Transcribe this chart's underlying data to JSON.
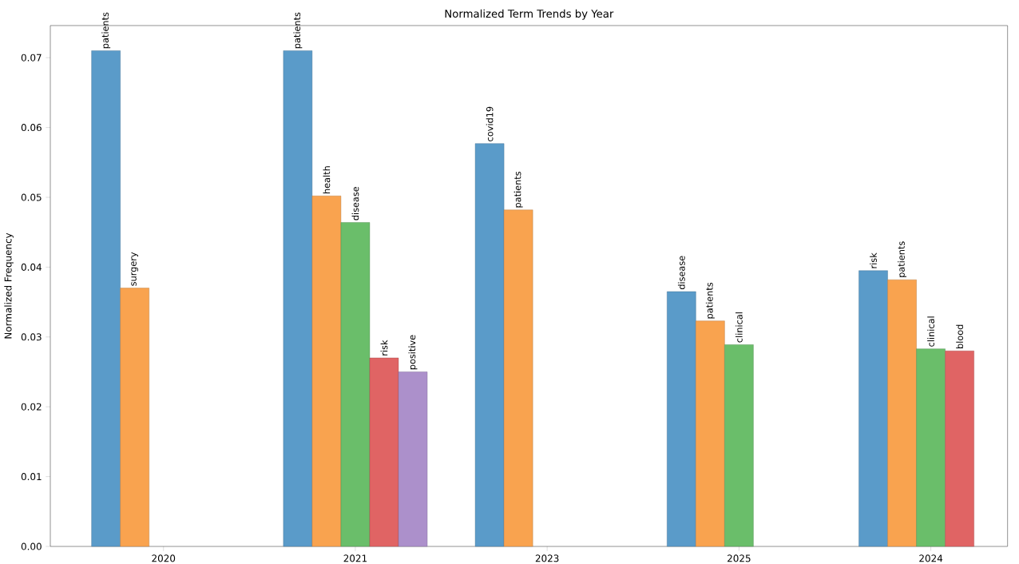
{
  "chart_data": {
    "type": "bar",
    "title": "Normalized Term Trends by Year",
    "ylabel": "Normalized Frequency",
    "categories": [
      "2020",
      "2021",
      "2023",
      "2025",
      "2024"
    ],
    "series": [
      {
        "color": "#5a9bc9",
        "values": [
          0.071,
          0.071,
          0.0577,
          0.0365,
          0.0395
        ],
        "value_labels": [
          "patients",
          "patients",
          "covid19",
          "disease",
          "risk"
        ]
      },
      {
        "color": "#f9a34f",
        "values": [
          0.037,
          0.0502,
          0.0482,
          0.0323,
          0.0382
        ],
        "value_labels": [
          "surgery",
          "health",
          "patients",
          "patients",
          "patients"
        ]
      },
      {
        "color": "#6abe6a",
        "values": [
          null,
          0.0464,
          null,
          0.0289,
          0.0283
        ],
        "value_labels": [
          null,
          "disease",
          null,
          "clinical",
          "clinical"
        ]
      },
      {
        "color": "#e06464",
        "values": [
          null,
          0.027,
          null,
          null,
          0.028
        ],
        "value_labels": [
          null,
          "risk",
          null,
          null,
          "blood"
        ]
      },
      {
        "color": "#ac90cb",
        "values": [
          null,
          0.025,
          null,
          null,
          null
        ],
        "value_labels": [
          null,
          "positive",
          null,
          null,
          null
        ]
      }
    ],
    "ylim": [
      0,
      0.0746
    ],
    "yticks": [
      {
        "value": 0,
        "label": "0.00"
      },
      0.01,
      0.02,
      0.03,
      0.04,
      0.05,
      0.06,
      0.07
    ],
    "grid": false
  }
}
